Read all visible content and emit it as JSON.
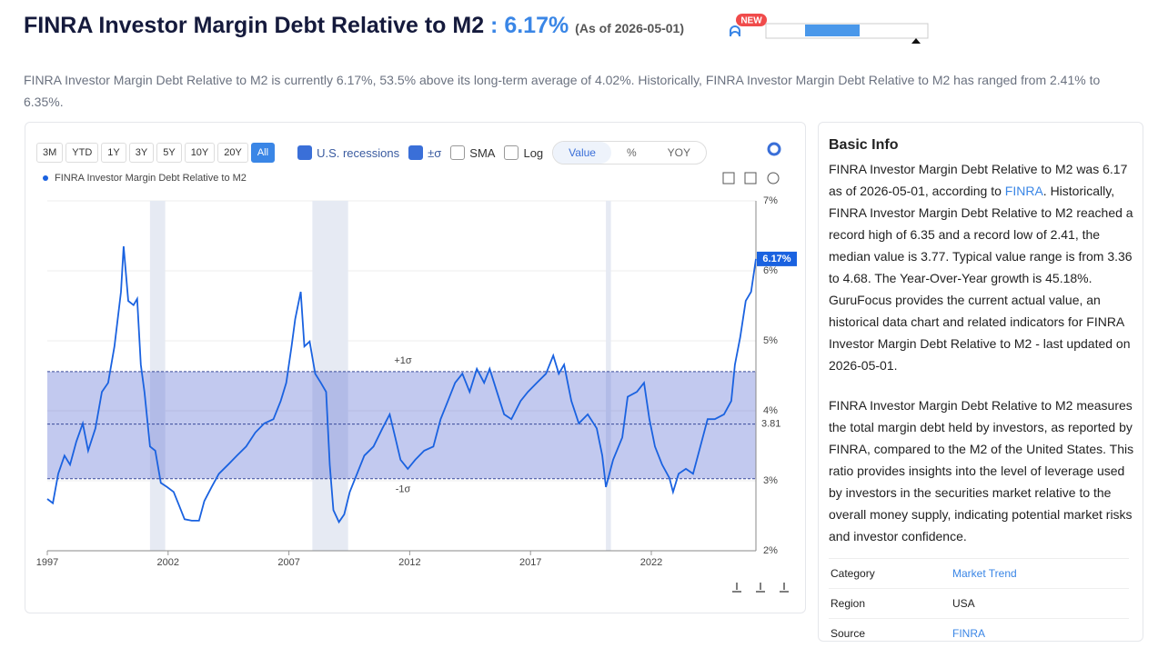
{
  "header": {
    "title": "FINRA Investor Margin Debt Relative to M2",
    "value": ": 6.17%",
    "as_of": "(As of 2026-05-01)",
    "badge": "NEW"
  },
  "description": "FINRA Investor Margin Debt Relative to M2 is currently 6.17%, 53.5% above its long-term average of 4.02%. Historically, FINRA Investor Margin Debt Relative to M2 has ranged from 2.41% to 6.35%.",
  "toolbar": {
    "ranges": [
      "3M",
      "YTD",
      "1Y",
      "3Y",
      "5Y",
      "10Y",
      "20Y",
      "All"
    ],
    "options": [
      "U.S. recessions",
      "±σ",
      "SMA",
      "Log"
    ],
    "modes": [
      "Value",
      "%",
      "YOY"
    ]
  },
  "chart_data": {
    "type": "line",
    "x": [
      1997.0,
      1997.23,
      1997.45,
      1997.71,
      1997.94,
      1998.2,
      1998.47,
      1998.69,
      1998.99,
      1999.26,
      1999.52,
      1999.78,
      2000.05,
      2000.16,
      2000.35,
      2000.57,
      2000.72,
      2000.87,
      2001.02,
      2001.25,
      2001.47,
      2001.7,
      2001.96,
      2002.23,
      2002.45,
      2002.68,
      2002.98,
      2003.28,
      2003.5,
      2003.8,
      2004.1,
      2004.48,
      2004.85,
      2005.23,
      2005.61,
      2005.98,
      2006.36,
      2006.66,
      2006.89,
      2007.11,
      2007.26,
      2007.49,
      2007.64,
      2007.86,
      2008.09,
      2008.32,
      2008.54,
      2008.69,
      2008.84,
      2009.07,
      2009.29,
      2009.52,
      2009.82,
      2010.12,
      2010.5,
      2010.87,
      2011.17,
      2011.4,
      2011.62,
      2011.92,
      2012.23,
      2012.6,
      2012.98,
      2013.28,
      2013.58,
      2013.88,
      2014.18,
      2014.48,
      2014.78,
      2015.08,
      2015.31,
      2015.61,
      2015.91,
      2016.21,
      2016.59,
      2016.89,
      2017.26,
      2017.64,
      2017.94,
      2018.17,
      2018.39,
      2018.69,
      2019.0,
      2019.37,
      2019.74,
      2019.97,
      2020.12,
      2020.42,
      2020.8,
      2021.02,
      2021.4,
      2021.7,
      2021.92,
      2022.15,
      2022.45,
      2022.75,
      2022.9,
      2023.13,
      2023.43,
      2023.73,
      2024.03,
      2024.33,
      2024.63,
      2025.01,
      2025.31,
      2025.46,
      2025.68,
      2025.91,
      2026.13,
      2026.33
    ],
    "series": [
      {
        "name": "FINRA Investor Margin Debt Relative to M2",
        "color": "#1a62e0",
        "values": [
          2.74,
          2.68,
          3.1,
          3.36,
          3.23,
          3.56,
          3.82,
          3.43,
          3.75,
          4.27,
          4.4,
          4.92,
          5.7,
          6.35,
          5.57,
          5.51,
          5.6,
          4.66,
          4.27,
          3.49,
          3.43,
          2.97,
          2.91,
          2.84,
          2.65,
          2.45,
          2.43,
          2.43,
          2.71,
          2.91,
          3.1,
          3.23,
          3.36,
          3.49,
          3.69,
          3.82,
          3.88,
          4.14,
          4.4,
          4.92,
          5.31,
          5.7,
          4.92,
          4.99,
          4.53,
          4.4,
          4.27,
          3.23,
          2.58,
          2.41,
          2.52,
          2.84,
          3.1,
          3.36,
          3.49,
          3.75,
          3.95,
          3.62,
          3.3,
          3.17,
          3.3,
          3.43,
          3.49,
          3.88,
          4.14,
          4.4,
          4.53,
          4.27,
          4.6,
          4.4,
          4.6,
          4.27,
          3.95,
          3.88,
          4.14,
          4.27,
          4.4,
          4.53,
          4.79,
          4.53,
          4.66,
          4.14,
          3.82,
          3.95,
          3.75,
          3.36,
          2.91,
          3.3,
          3.62,
          4.2,
          4.27,
          4.4,
          3.88,
          3.49,
          3.23,
          3.04,
          2.84,
          3.1,
          3.17,
          3.1,
          3.49,
          3.88,
          3.88,
          3.95,
          4.14,
          4.66,
          5.05,
          5.57,
          5.7,
          6.17
        ]
      }
    ],
    "xlim": [
      1997,
      2026.33
    ],
    "xticks": [
      1997,
      2002,
      2007,
      2012,
      2017,
      2022
    ],
    "ylim": [
      2,
      7
    ],
    "yticks": [
      {
        "value": 2,
        "label": "2%"
      },
      {
        "value": 3,
        "label": "3%"
      },
      {
        "value": 4,
        "label": "4%"
      },
      {
        "value": 5,
        "label": "5%"
      },
      {
        "value": 6,
        "label": "6%"
      },
      {
        "value": 7,
        "label": "7%"
      }
    ],
    "grid": true,
    "recessions": [
      [
        2001.25,
        2001.88
      ],
      [
        2007.97,
        2009.45
      ],
      [
        2020.12,
        2020.33
      ]
    ],
    "bands": {
      "mean": 3.81,
      "plus": 4.56,
      "minus": 3.03,
      "plus_label": "+1σ",
      "minus_label": "-1σ"
    },
    "current": {
      "value": 6.17,
      "label": "6.17%"
    }
  },
  "info": {
    "heading": "Basic Info",
    "p1_start": "FINRA Investor Margin Debt Relative to M2 was 6.17 as of 2026-05-01, according to ",
    "p1_link": "FINRA",
    "p1_end": ". Historically, FINRA Investor Margin Debt Relative to M2 reached a record high of 6.35 and a record low of 2.41, the median value is 3.77. Typical value range is from 3.36 to 4.68. The Year-Over-Year growth is 45.18%. GuruFocus provides the current actual value, an historical data chart and related indicators for FINRA Investor Margin Debt Relative to M2 - last updated on 2026-05-01.",
    "p2": "FINRA Investor Margin Debt Relative to M2 measures the total margin debt held by investors, as reported by FINRA, compared to the M2 of the United States. This ratio provides insights into the level of leverage used by investors in the securities market relative to the overall money supply, indicating potential market risks and investor confidence.",
    "rows": [
      [
        "Category",
        "Market Trend"
      ],
      [
        "Region",
        "USA"
      ],
      [
        "Source",
        "FINRA"
      ]
    ]
  }
}
